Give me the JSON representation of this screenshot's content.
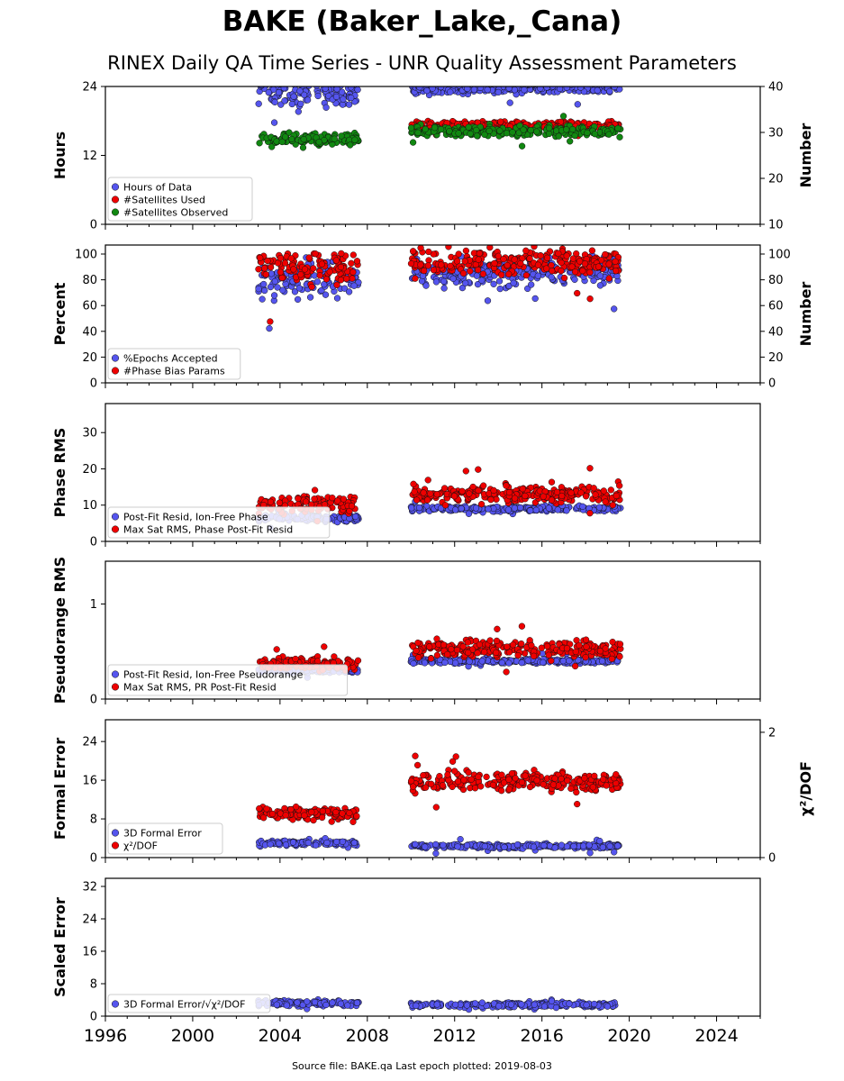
{
  "title": "BAKE (Baker_Lake,_Cana)",
  "subtitle": "RINEX Daily QA Time Series - UNR Quality Assessment Parameters",
  "footer": "Source file: BAKE.qa Last epoch plotted: 2019-08-03",
  "colors": {
    "blue": "#5555ee",
    "red": "#ee0000",
    "green": "#118811"
  },
  "chart_data": [
    {
      "type": "scatter",
      "ylabel": "Hours",
      "ylim": [
        0,
        24
      ],
      "yticks": [
        0,
        12,
        24
      ],
      "y2label": "Number",
      "y2lim": [
        10,
        40
      ],
      "y2ticks": [
        10,
        20,
        30,
        40
      ],
      "legend_position": "lower-left",
      "series": [
        {
          "name": "Hours of Data",
          "color": "#5555ee",
          "axis": "left",
          "segments": [
            {
              "x0": 2003.0,
              "x1": 2007.6,
              "center": 22.8,
              "spread": 1.6
            },
            {
              "x0": 2010.0,
              "x1": 2019.6,
              "center": 23.6,
              "spread": 0.7
            }
          ]
        },
        {
          "name": "#Satellites Used",
          "color": "#ee0000",
          "axis": "right",
          "segments": [
            {
              "x0": 2010.0,
              "x1": 2019.6,
              "center": 31.5,
              "spread": 0.7
            }
          ]
        },
        {
          "name": "#Satellites Observed",
          "color": "#118811",
          "axis": "right",
          "segments": [
            {
              "x0": 2003.0,
              "x1": 2007.6,
              "center": 28.5,
              "spread": 1.0
            },
            {
              "x0": 2010.0,
              "x1": 2019.6,
              "center": 30.3,
              "spread": 0.9
            }
          ]
        }
      ]
    },
    {
      "type": "scatter",
      "ylabel": "Percent",
      "ylim": [
        0,
        107
      ],
      "yticks": [
        0,
        20,
        40,
        60,
        80,
        100
      ],
      "y2label": "Number",
      "y2lim": [
        0,
        107
      ],
      "y2ticks": [
        0,
        20,
        40,
        60,
        80,
        100
      ],
      "legend_position": "lower-left",
      "series": [
        {
          "name": "%Epochs Accepted",
          "color": "#5555ee",
          "axis": "left",
          "segments": [
            {
              "x0": 2003.0,
              "x1": 2007.6,
              "center": 80,
              "spread": 12
            },
            {
              "x0": 2010.0,
              "x1": 2019.6,
              "center": 86,
              "spread": 9
            }
          ]
        },
        {
          "name": "#Phase Bias Params",
          "color": "#ee0000",
          "axis": "right",
          "segments": [
            {
              "x0": 2003.0,
              "x1": 2007.6,
              "center": 90,
              "spread": 11
            },
            {
              "x0": 2010.0,
              "x1": 2019.6,
              "center": 94,
              "spread": 8
            }
          ]
        }
      ]
    },
    {
      "type": "scatter",
      "ylabel": "Phase RMS",
      "ylim": [
        0,
        38
      ],
      "yticks": [
        0,
        10,
        20,
        30
      ],
      "legend_position": "lower-left",
      "series": [
        {
          "name": "Post-Fit Resid, Ion-Free Phase",
          "color": "#5555ee",
          "axis": "left",
          "segments": [
            {
              "x0": 2003.0,
              "x1": 2007.6,
              "center": 6.5,
              "spread": 0.8
            },
            {
              "x0": 2010.0,
              "x1": 2019.6,
              "center": 9.0,
              "spread": 0.6
            }
          ]
        },
        {
          "name": "Max Sat RMS, Phase Post-Fit Resid",
          "color": "#ee0000",
          "axis": "left",
          "segments": [
            {
              "x0": 2003.0,
              "x1": 2007.6,
              "center": 10.5,
              "spread": 2.2
            },
            {
              "x0": 2010.0,
              "x1": 2019.6,
              "center": 13.0,
              "spread": 1.8
            }
          ]
        }
      ]
    },
    {
      "type": "scatter",
      "ylabel": "Pseudorange RMS",
      "ylim": [
        0,
        1.45
      ],
      "yticks": [
        0,
        1
      ],
      "legend_position": "lower-left",
      "series": [
        {
          "name": "Post-Fit Resid, Ion-Free Pseudorange",
          "color": "#5555ee",
          "axis": "left",
          "segments": [
            {
              "x0": 2003.0,
              "x1": 2007.6,
              "center": 0.3,
              "spread": 0.02
            },
            {
              "x0": 2010.0,
              "x1": 2019.6,
              "center": 0.4,
              "spread": 0.02
            }
          ]
        },
        {
          "name": "Max Sat RMS, PR Post-Fit Resid",
          "color": "#ee0000",
          "axis": "left",
          "segments": [
            {
              "x0": 2003.0,
              "x1": 2007.6,
              "center": 0.37,
              "spread": 0.06
            },
            {
              "x0": 2010.0,
              "x1": 2019.6,
              "center": 0.53,
              "spread": 0.08
            }
          ]
        }
      ]
    },
    {
      "type": "scatter",
      "ylabel": "Formal Error",
      "ylim": [
        0,
        28.5
      ],
      "yticks": [
        0,
        8,
        16,
        24
      ],
      "y2label": "χ²/DOF",
      "y2lim": [
        0,
        2.2
      ],
      "y2ticks": [
        0,
        2
      ],
      "legend_position": "lower-left",
      "series": [
        {
          "name": "3D Formal Error",
          "color": "#5555ee",
          "axis": "left",
          "segments": [
            {
              "x0": 2003.0,
              "x1": 2007.6,
              "center": 3.0,
              "spread": 0.4
            },
            {
              "x0": 2010.0,
              "x1": 2019.6,
              "center": 2.4,
              "spread": 0.4
            }
          ]
        },
        {
          "name": "χ²/DOF",
          "color": "#ee0000",
          "axis": "right",
          "segments": [
            {
              "x0": 2003.0,
              "x1": 2007.6,
              "center": 0.7,
              "spread": 0.08
            },
            {
              "x0": 2010.0,
              "x1": 2019.6,
              "center": 1.22,
              "spread": 0.12
            }
          ]
        }
      ]
    },
    {
      "type": "scatter",
      "ylabel": "Scaled Error",
      "ylim": [
        0,
        34
      ],
      "yticks": [
        0,
        8,
        16,
        24,
        32
      ],
      "legend_position": "lower-left",
      "series": [
        {
          "name": "3D Formal Error/√χ²/DOF",
          "color": "#5555ee",
          "axis": "left",
          "segments": [
            {
              "x0": 2003.0,
              "x1": 2007.6,
              "center": 3.2,
              "spread": 0.6
            },
            {
              "x0": 2010.0,
              "x1": 2019.6,
              "center": 2.8,
              "spread": 0.5
            }
          ]
        }
      ]
    }
  ],
  "xaxis": {
    "xlim": [
      1996,
      2026
    ],
    "ticks": [
      1996,
      2000,
      2004,
      2008,
      2012,
      2016,
      2020,
      2024
    ]
  }
}
